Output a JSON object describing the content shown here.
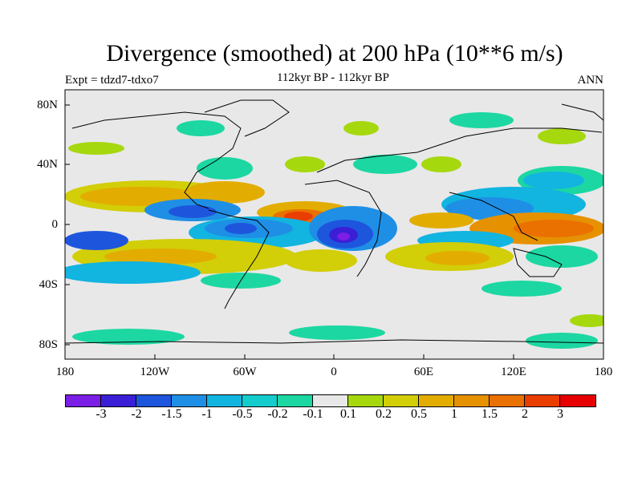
{
  "title": "Divergence (smoothed) at 200 hPa (10**6 m/s)",
  "left_subtitle": "Expt = tdzd7-tdxo7",
  "center_subtitle": "112kyr BP - 112kyr BP",
  "right_subtitle": "ANN",
  "lat_ticks": [
    "80N",
    "40N",
    "0",
    "40S",
    "80S"
  ],
  "lon_ticks": [
    "180",
    "120W",
    "60W",
    "0",
    "60E",
    "120E",
    "180"
  ],
  "colorbar": {
    "labels": [
      "-3",
      "-2",
      "-1.5",
      "-1",
      "-0.5",
      "-0.2",
      "-0.1",
      "0.1",
      "0.2",
      "0.5",
      "1",
      "1.5",
      "2",
      "3"
    ],
    "colors": [
      "#7b1ee6",
      "#3a1fd6",
      "#1d56dd",
      "#1f8fe6",
      "#12b4e0",
      "#14cccc",
      "#1cd7a2",
      "#e8e8e8",
      "#a6d80e",
      "#d2ce08",
      "#e2ad00",
      "#e69100",
      "#ea7000",
      "#ea3d00",
      "#e60000"
    ]
  }
}
